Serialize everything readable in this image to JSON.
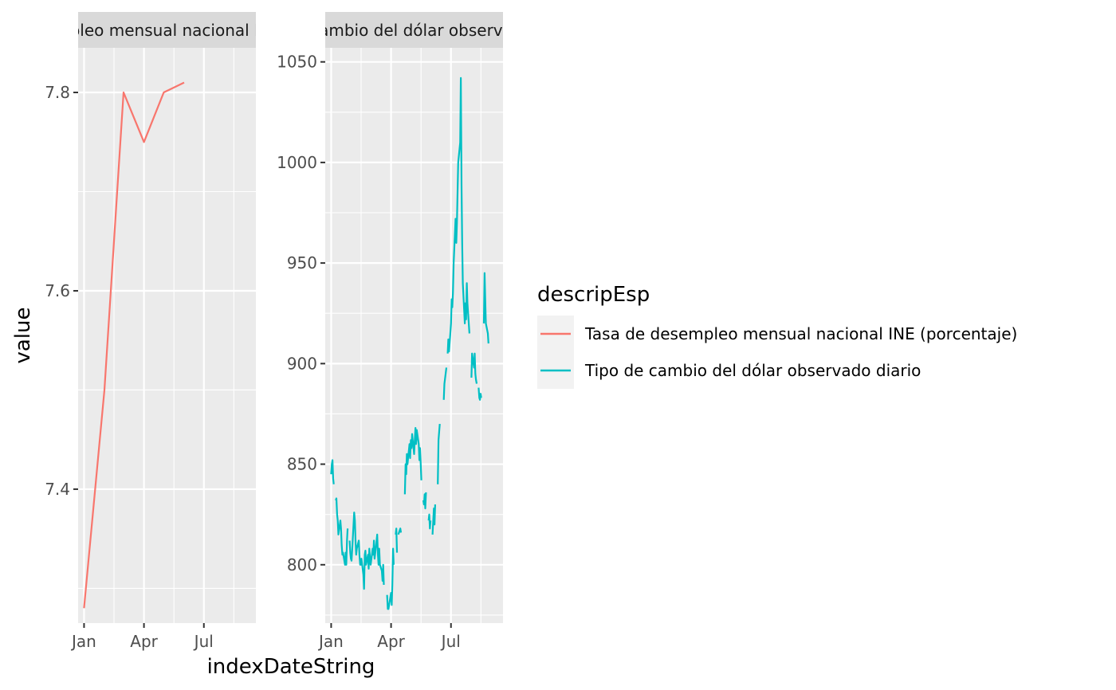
{
  "chart_data": {
    "type": "line",
    "xlabel": "indexDateString",
    "ylabel": "value",
    "legend": {
      "title": "descripEsp",
      "position": "right",
      "entries": [
        {
          "label": "Tasa de desempleo mensual nacional INE (porcentaje)",
          "color": "#F8766D"
        },
        {
          "label": "Tipo de cambio del dólar observado diario",
          "color": "#00BFC4"
        }
      ]
    },
    "x_ticks": [
      {
        "date": "2024-01-01",
        "label": "Jan"
      },
      {
        "date": "2024-04-01",
        "label": "Apr"
      },
      {
        "date": "2024-07-01",
        "label": "Jul"
      }
    ],
    "grid": true,
    "panels": [
      {
        "strip": "Tasa de desempleo mensual nacional INE (porcentaje)",
        "xlim": [
          "2023-12-23",
          "2024-09-18"
        ],
        "ylim": [
          7.265,
          7.845
        ],
        "y_ticks": [
          7.4,
          7.6,
          7.8
        ],
        "series": [
          {
            "name": "Tasa de desempleo mensual nacional INE (porcentaje)",
            "color": "#F8766D",
            "points": [
              [
                "2024-01-01",
                7.28
              ],
              [
                "2024-02-01",
                7.5
              ],
              [
                "2024-03-01",
                7.8
              ],
              [
                "2024-04-01",
                7.75
              ],
              [
                "2024-05-01",
                7.8
              ],
              [
                "2024-06-01",
                7.81
              ]
            ]
          }
        ]
      },
      {
        "strip": "Tipo de cambio del dólar observado diario",
        "xlim": [
          "2023-12-23",
          "2024-09-18"
        ],
        "ylim": [
          771,
          1057
        ],
        "y_ticks": [
          800,
          850,
          900,
          950,
          1000,
          1050
        ],
        "series": [
          {
            "name": "Tipo de cambio del dólar observado diario",
            "color": "#00BFC4",
            "segments": [
              [
                [
                  "2024-01-01",
                  845
                ],
                [
                  "2024-01-02",
                  850
                ],
                [
                  "2024-01-03",
                  852
                ],
                [
                  "2024-01-04",
                  843
                ],
                [
                  "2024-01-05",
                  840
                ]
              ],
              [
                [
                  "2024-01-08",
                  832
                ],
                [
                  "2024-01-09",
                  833
                ],
                [
                  "2024-01-10",
                  825
                ],
                [
                  "2024-01-11",
                  822
                ],
                [
                  "2024-01-12",
                  815
                ],
                [
                  "2024-01-15",
                  822
                ],
                [
                  "2024-01-16",
                  818
                ],
                [
                  "2024-01-17",
                  810
                ],
                [
                  "2024-01-18",
                  805
                ],
                [
                  "2024-01-19",
                  806
                ],
                [
                  "2024-01-22",
                  800
                ],
                [
                  "2024-01-23",
                  806
                ],
                [
                  "2024-01-24",
                  800
                ],
                [
                  "2024-01-25",
                  812
                ],
                [
                  "2024-01-26",
                  818
                ]
              ],
              [
                [
                  "2024-01-29",
                  812
                ],
                [
                  "2024-01-30",
                  806
                ],
                [
                  "2024-01-31",
                  803
                ],
                [
                  "2024-02-01",
                  802
                ],
                [
                  "2024-02-02",
                  808
                ],
                [
                  "2024-02-05",
                  826
                ],
                [
                  "2024-02-06",
                  822
                ],
                [
                  "2024-02-07",
                  812
                ],
                [
                  "2024-02-08",
                  805
                ],
                [
                  "2024-02-09",
                  808
                ],
                [
                  "2024-02-12",
                  812
                ],
                [
                  "2024-02-13",
                  805
                ],
                [
                  "2024-02-14",
                  800
                ],
                [
                  "2024-02-15",
                  800
                ],
                [
                  "2024-02-16",
                  803
                ],
                [
                  "2024-02-19",
                  795
                ],
                [
                  "2024-02-20",
                  788
                ],
                [
                  "2024-02-21",
                  805
                ],
                [
                  "2024-02-22",
                  807
                ],
                [
                  "2024-02-23",
                  800
                ],
                [
                  "2024-02-26",
                  805
                ],
                [
                  "2024-02-27",
                  798
                ],
                [
                  "2024-02-28",
                  808
                ],
                [
                  "2024-02-29",
                  803
                ],
                [
                  "2024-03-01",
                  800
                ],
                [
                  "2024-03-04",
                  808
                ],
                [
                  "2024-03-05",
                  805
                ],
                [
                  "2024-03-06",
                  812
                ],
                [
                  "2024-03-07",
                  803
                ],
                [
                  "2024-03-08",
                  806
                ],
                [
                  "2024-03-11",
                  815
                ],
                [
                  "2024-03-12",
                  805
                ],
                [
                  "2024-03-13",
                  800
                ],
                [
                  "2024-03-14",
                  808
                ],
                [
                  "2024-03-15",
                  800
                ],
                [
                  "2024-03-18",
                  797
                ],
                [
                  "2024-03-19",
                  792
                ],
                [
                  "2024-03-20",
                  800
                ],
                [
                  "2024-03-21",
                  790
                ]
              ],
              [
                [
                  "2024-03-26",
                  785
                ],
                [
                  "2024-03-27",
                  778
                ],
                [
                  "2024-03-28",
                  778
                ],
                [
                  "2024-04-01",
                  786
                ],
                [
                  "2024-04-02",
                  780
                ],
                [
                  "2024-04-03",
                  790
                ],
                [
                  "2024-04-04",
                  808
                ],
                [
                  "2024-04-05",
                  800
                ]
              ],
              [
                [
                  "2024-04-08",
                  815
                ],
                [
                  "2024-04-09",
                  818
                ],
                [
                  "2024-04-10",
                  806
                ]
              ],
              [
                [
                  "2024-04-12",
                  815
                ],
                [
                  "2024-04-15",
                  818
                ],
                [
                  "2024-04-16",
                  816
                ]
              ],
              [
                [
                  "2024-04-22",
                  835
                ],
                [
                  "2024-04-23",
                  850
                ],
                [
                  "2024-04-24",
                  845
                ],
                [
                  "2024-04-25",
                  855
                ],
                [
                  "2024-04-26",
                  850
                ],
                [
                  "2024-04-29",
                  860
                ],
                [
                  "2024-04-30",
                  853
                ],
                [
                  "2024-05-01",
                  862
                ],
                [
                  "2024-05-02",
                  858
                ],
                [
                  "2024-05-03",
                  865
                ],
                [
                  "2024-05-06",
                  855
                ],
                [
                  "2024-05-07",
                  862
                ],
                [
                  "2024-05-08",
                  868
                ],
                [
                  "2024-05-09",
                  860
                ],
                [
                  "2024-05-10",
                  867
                ],
                [
                  "2024-05-13",
                  860
                ],
                [
                  "2024-05-14",
                  852
                ],
                [
                  "2024-05-15",
                  858
                ],
                [
                  "2024-05-16",
                  850
                ],
                [
                  "2024-05-17",
                  842
                ]
              ],
              [
                [
                  "2024-05-20",
                  832
                ],
                [
                  "2024-05-21",
                  830
                ],
                [
                  "2024-05-22",
                  835
                ],
                [
                  "2024-05-23",
                  828
                ],
                [
                  "2024-05-24",
                  836
                ]
              ],
              [
                [
                  "2024-05-28",
                  822
                ],
                [
                  "2024-05-29",
                  825
                ],
                [
                  "2024-05-30",
                  818
                ],
                [
                  "2024-05-31",
                  822
                ]
              ],
              [
                [
                  "2024-06-03",
                  815
                ],
                [
                  "2024-06-04",
                  822
                ],
                [
                  "2024-06-05",
                  828
                ],
                [
                  "2024-06-06",
                  820
                ],
                [
                  "2024-06-07",
                  830
                ]
              ],
              [
                [
                  "2024-06-11",
                  840
                ],
                [
                  "2024-06-12",
                  862
                ],
                [
                  "2024-06-13",
                  866
                ],
                [
                  "2024-06-14",
                  870
                ]
              ],
              [
                [
                  "2024-06-20",
                  882
                ],
                [
                  "2024-06-21",
                  890
                ],
                [
                  "2024-06-24",
                  898
                ]
              ],
              [
                [
                  "2024-06-26",
                  905
                ],
                [
                  "2024-06-27",
                  912
                ],
                [
                  "2024-06-28",
                  906
                ],
                [
                  "2024-07-01",
                  920
                ],
                [
                  "2024-07-02",
                  932
                ],
                [
                  "2024-07-03",
                  928
                ],
                [
                  "2024-07-04",
                  935
                ],
                [
                  "2024-07-05",
                  950
                ],
                [
                  "2024-07-08",
                  972
                ],
                [
                  "2024-07-09",
                  960
                ],
                [
                  "2024-07-10",
                  970
                ],
                [
                  "2024-07-11",
                  985
                ],
                [
                  "2024-07-12",
                  1000
                ],
                [
                  "2024-07-15",
                  1010
                ],
                [
                  "2024-07-16",
                  1042
                ],
                [
                  "2024-07-17",
                  988
                ],
                [
                  "2024-07-18",
                  960
                ],
                [
                  "2024-07-19",
                  940
                ],
                [
                  "2024-07-22",
                  920
                ],
                [
                  "2024-07-23",
                  930
                ],
                [
                  "2024-07-24",
                  922
                ],
                [
                  "2024-07-25",
                  940
                ],
                [
                  "2024-07-26",
                  930
                ],
                [
                  "2024-07-29",
                  915
                ]
              ],
              [
                [
                  "2024-08-01",
                  893
                ],
                [
                  "2024-08-02",
                  905
                ],
                [
                  "2024-08-05",
                  898
                ],
                [
                  "2024-08-06",
                  905
                ],
                [
                  "2024-08-07",
                  895
                ],
                [
                  "2024-08-08",
                  892
                ],
                [
                  "2024-08-09",
                  890
                ]
              ],
              [
                [
                  "2024-08-12",
                  888
                ],
                [
                  "2024-08-13",
                  883
                ],
                [
                  "2024-08-14",
                  882
                ],
                [
                  "2024-08-15",
                  885
                ],
                [
                  "2024-08-16",
                  883
                ]
              ],
              [
                [
                  "2024-08-20",
                  920
                ],
                [
                  "2024-08-21",
                  945
                ],
                [
                  "2024-08-22",
                  932
                ],
                [
                  "2024-08-23",
                  920
                ],
                [
                  "2024-08-26",
                  915
                ],
                [
                  "2024-08-27",
                  910
                ]
              ]
            ]
          }
        ]
      }
    ]
  }
}
